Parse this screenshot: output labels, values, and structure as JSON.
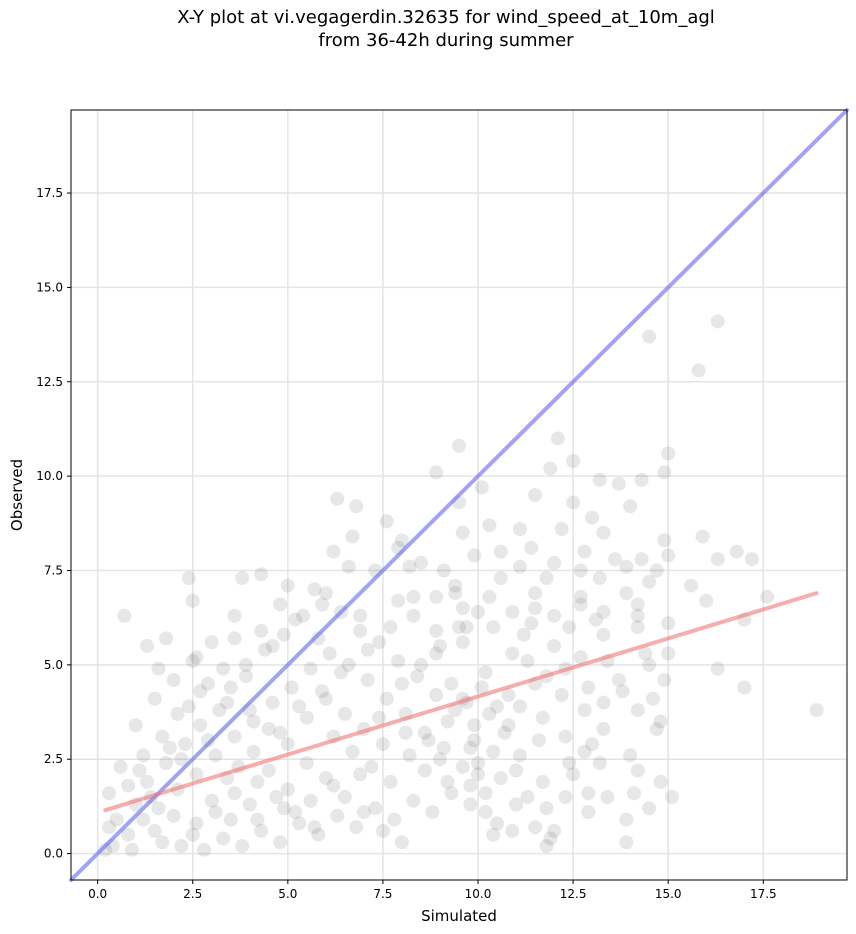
{
  "chart_data": {
    "type": "scatter",
    "title": [
      "X-Y plot at vi.vegagerdin.32635 for wind_speed_at_10m_agl",
      "from 36-42h during summer"
    ],
    "xlabel": "Simulated",
    "ylabel": "Observed",
    "xlim": [
      -0.7,
      19.7
    ],
    "ylim": [
      -0.7,
      19.7
    ],
    "xticks": [
      0.0,
      2.5,
      5.0,
      7.5,
      10.0,
      12.5,
      15.0,
      17.5
    ],
    "yticks": [
      0.0,
      2.5,
      5.0,
      7.5,
      10.0,
      12.5,
      15.0,
      17.5
    ],
    "tick_labels": [
      "0.0",
      "2.5",
      "5.0",
      "7.5",
      "10.0",
      "12.5",
      "15.0",
      "17.5"
    ],
    "grid": true,
    "colors": {
      "points": "#444444",
      "identity_line": "#6666ee",
      "fit_line": "#ee7777"
    },
    "lines": [
      {
        "kind": "identity",
        "points": [
          [
            -0.7,
            -0.7
          ],
          [
            19.7,
            19.7
          ]
        ]
      },
      {
        "kind": "linear_fit",
        "points": [
          [
            0.2,
            1.15
          ],
          [
            18.9,
            6.9
          ]
        ]
      }
    ],
    "points": [
      [
        16.3,
        14.1
      ],
      [
        14.5,
        13.7
      ],
      [
        15.8,
        12.8
      ],
      [
        12.1,
        11.0
      ],
      [
        9.5,
        10.8
      ],
      [
        12.5,
        10.4
      ],
      [
        15.0,
        10.6
      ],
      [
        11.9,
        10.2
      ],
      [
        8.9,
        10.1
      ],
      [
        14.9,
        10.1
      ],
      [
        13.2,
        9.9
      ],
      [
        14.3,
        9.9
      ],
      [
        10.1,
        9.7
      ],
      [
        13.7,
        9.8
      ],
      [
        11.5,
        9.5
      ],
      [
        6.3,
        9.4
      ],
      [
        12.5,
        9.3
      ],
      [
        14.0,
        9.2
      ],
      [
        9.5,
        9.3
      ],
      [
        6.8,
        9.2
      ],
      [
        13.0,
        8.9
      ],
      [
        7.6,
        8.8
      ],
      [
        10.3,
        8.7
      ],
      [
        11.1,
        8.6
      ],
      [
        13.3,
        8.5
      ],
      [
        9.6,
        8.5
      ],
      [
        12.2,
        8.6
      ],
      [
        14.9,
        8.3
      ],
      [
        15.9,
        8.4
      ],
      [
        8.0,
        8.3
      ],
      [
        6.7,
        8.4
      ],
      [
        11.4,
        8.1
      ],
      [
        12.8,
        8.0
      ],
      [
        16.8,
        8.0
      ],
      [
        10.6,
        8.0
      ],
      [
        6.2,
        8.0
      ],
      [
        7.9,
        8.1
      ],
      [
        15.0,
        7.9
      ],
      [
        9.9,
        7.9
      ],
      [
        14.3,
        7.8
      ],
      [
        13.6,
        7.8
      ],
      [
        16.3,
        7.8
      ],
      [
        17.2,
        7.8
      ],
      [
        8.5,
        7.7
      ],
      [
        12.0,
        7.7
      ],
      [
        6.6,
        7.6
      ],
      [
        13.9,
        7.6
      ],
      [
        11.1,
        7.6
      ],
      [
        9.1,
        7.5
      ],
      [
        7.3,
        7.5
      ],
      [
        8.2,
        7.6
      ],
      [
        14.7,
        7.5
      ],
      [
        12.7,
        7.5
      ],
      [
        2.4,
        7.3
      ],
      [
        3.8,
        7.3
      ],
      [
        10.6,
        7.3
      ],
      [
        13.2,
        7.3
      ],
      [
        4.3,
        7.4
      ],
      [
        11.8,
        7.3
      ],
      [
        5.0,
        7.1
      ],
      [
        15.6,
        7.1
      ],
      [
        14.5,
        7.2
      ],
      [
        2.5,
        6.7
      ],
      [
        4.8,
        6.6
      ],
      [
        11.5,
        6.9
      ],
      [
        9.4,
        6.9
      ],
      [
        5.7,
        7.0
      ],
      [
        13.9,
        6.9
      ],
      [
        12.7,
        6.8
      ],
      [
        10.3,
        6.8
      ],
      [
        16.0,
        6.7
      ],
      [
        8.3,
        6.8
      ],
      [
        7.9,
        6.7
      ],
      [
        17.6,
        6.8
      ],
      [
        14.2,
        6.6
      ],
      [
        11.5,
        6.5
      ],
      [
        12.7,
        6.6
      ],
      [
        9.6,
        6.5
      ],
      [
        13.3,
        6.4
      ],
      [
        10.9,
        6.4
      ],
      [
        3.6,
        6.3
      ],
      [
        6.9,
        6.3
      ],
      [
        0.7,
        6.3
      ],
      [
        12.0,
        6.3
      ],
      [
        14.2,
        6.3
      ],
      [
        17.0,
        6.2
      ],
      [
        15.0,
        6.1
      ],
      [
        11.4,
        6.1
      ],
      [
        13.1,
        6.2
      ],
      [
        9.7,
        6.0
      ],
      [
        12.4,
        6.0
      ],
      [
        10.4,
        6.0
      ],
      [
        14.2,
        6.0
      ],
      [
        4.3,
        5.9
      ],
      [
        8.9,
        5.9
      ],
      [
        13.3,
        5.8
      ],
      [
        11.2,
        5.8
      ],
      [
        1.8,
        5.7
      ],
      [
        3.6,
        5.7
      ],
      [
        5.8,
        5.7
      ],
      [
        9.6,
        5.6
      ],
      [
        12.0,
        5.5
      ],
      [
        1.3,
        5.5
      ],
      [
        14.4,
        5.3
      ],
      [
        10.9,
        5.3
      ],
      [
        12.7,
        5.2
      ],
      [
        15.0,
        5.3
      ],
      [
        8.9,
        5.3
      ],
      [
        11.3,
        5.1
      ],
      [
        13.4,
        5.1
      ],
      [
        2.6,
        5.2
      ],
      [
        16.3,
        4.9
      ],
      [
        14.5,
        5.0
      ],
      [
        12.3,
        4.9
      ],
      [
        10.2,
        4.8
      ],
      [
        11.8,
        4.7
      ],
      [
        1.6,
        4.9
      ],
      [
        13.7,
        4.6
      ],
      [
        14.9,
        4.6
      ],
      [
        9.3,
        4.5
      ],
      [
        12.9,
        4.4
      ],
      [
        17.0,
        4.4
      ],
      [
        11.5,
        4.5
      ],
      [
        13.8,
        4.3
      ],
      [
        10.8,
        4.2
      ],
      [
        12.2,
        4.2
      ],
      [
        14.6,
        4.1
      ],
      [
        13.3,
        4.0
      ],
      [
        9.6,
        4.1
      ],
      [
        11.1,
        3.9
      ],
      [
        12.8,
        3.8
      ],
      [
        14.2,
        3.8
      ],
      [
        18.9,
        3.8
      ],
      [
        10.3,
        3.7
      ],
      [
        11.7,
        3.6
      ],
      [
        13.3,
        3.3
      ],
      [
        14.8,
        3.5
      ],
      [
        9.9,
        3.4
      ],
      [
        14.7,
        3.3
      ],
      [
        12.3,
        3.1
      ],
      [
        10.7,
        3.2
      ],
      [
        11.6,
        3.0
      ],
      [
        13.0,
        2.9
      ],
      [
        9.8,
        2.8
      ],
      [
        12.8,
        2.7
      ],
      [
        11.1,
        2.6
      ],
      [
        14.0,
        2.6
      ],
      [
        10.0,
        2.4
      ],
      [
        12.4,
        2.4
      ],
      [
        13.2,
        2.4
      ],
      [
        11.0,
        2.2
      ],
      [
        14.2,
        2.2
      ],
      [
        12.5,
        2.1
      ],
      [
        10.6,
        2.0
      ],
      [
        11.7,
        1.9
      ],
      [
        14.8,
        1.9
      ],
      [
        9.8,
        1.8
      ],
      [
        12.9,
        1.6
      ],
      [
        14.1,
        1.6
      ],
      [
        10.2,
        1.6
      ],
      [
        11.3,
        1.5
      ],
      [
        12.3,
        1.5
      ],
      [
        13.4,
        1.5
      ],
      [
        15.1,
        1.5
      ],
      [
        11.0,
        1.3
      ],
      [
        11.8,
        1.2
      ],
      [
        14.5,
        1.2
      ],
      [
        10.2,
        1.1
      ],
      [
        12.9,
        1.1
      ],
      [
        13.9,
        0.9
      ],
      [
        10.5,
        0.8
      ],
      [
        11.5,
        0.7
      ],
      [
        12.0,
        0.6
      ],
      [
        10.9,
        0.6
      ],
      [
        11.9,
        0.4
      ],
      [
        10.4,
        0.5
      ],
      [
        13.9,
        0.3
      ],
      [
        11.8,
        0.2
      ],
      [
        0.3,
        1.6
      ],
      [
        0.6,
        2.3
      ],
      [
        1.1,
        2.2
      ],
      [
        1.4,
        1.5
      ],
      [
        1.9,
        2.8
      ],
      [
        2.4,
        3.9
      ],
      [
        2.9,
        4.5
      ],
      [
        3.4,
        4.0
      ],
      [
        3.9,
        4.7
      ],
      [
        4.4,
        5.4
      ],
      [
        4.9,
        5.8
      ],
      [
        5.4,
        6.3
      ],
      [
        5.9,
        6.6
      ],
      [
        6.4,
        6.4
      ],
      [
        6.9,
        5.9
      ],
      [
        7.4,
        5.6
      ],
      [
        7.9,
        5.1
      ],
      [
        8.4,
        4.7
      ],
      [
        8.9,
        4.2
      ],
      [
        9.4,
        3.8
      ],
      [
        1.0,
        3.4
      ],
      [
        1.5,
        4.1
      ],
      [
        2.0,
        4.6
      ],
      [
        2.5,
        5.1
      ],
      [
        3.0,
        5.6
      ],
      [
        3.5,
        4.4
      ],
      [
        4.0,
        3.8
      ],
      [
        4.5,
        3.3
      ],
      [
        5.0,
        2.9
      ],
      [
        5.5,
        2.4
      ],
      [
        6.0,
        2.0
      ],
      [
        6.5,
        1.5
      ],
      [
        7.0,
        1.1
      ],
      [
        7.5,
        0.6
      ],
      [
        8.0,
        0.3
      ],
      [
        0.4,
        0.2
      ],
      [
        0.8,
        0.5
      ],
      [
        1.2,
        0.9
      ],
      [
        1.6,
        1.2
      ],
      [
        2.1,
        1.7
      ],
      [
        2.6,
        2.1
      ],
      [
        3.1,
        2.6
      ],
      [
        3.6,
        3.1
      ],
      [
        4.1,
        3.5
      ],
      [
        4.6,
        4.0
      ],
      [
        5.1,
        4.4
      ],
      [
        5.6,
        4.9
      ],
      [
        6.1,
        5.3
      ],
      [
        6.6,
        5.0
      ],
      [
        7.1,
        4.6
      ],
      [
        7.6,
        4.1
      ],
      [
        8.1,
        3.7
      ],
      [
        8.6,
        3.2
      ],
      [
        9.1,
        2.8
      ],
      [
        9.6,
        2.3
      ],
      [
        0.9,
        0.1
      ],
      [
        1.7,
        0.3
      ],
      [
        2.2,
        0.2
      ],
      [
        2.8,
        0.1
      ],
      [
        3.3,
        0.4
      ],
      [
        3.8,
        0.2
      ],
      [
        4.3,
        0.6
      ],
      [
        4.8,
        0.3
      ],
      [
        5.3,
        0.8
      ],
      [
        5.8,
        0.5
      ],
      [
        6.3,
        1.0
      ],
      [
        6.8,
        0.7
      ],
      [
        7.3,
        1.2
      ],
      [
        7.8,
        0.9
      ],
      [
        8.3,
        1.4
      ],
      [
        8.8,
        1.1
      ],
      [
        9.3,
        1.6
      ],
      [
        9.8,
        1.3
      ],
      [
        10.0,
        2.1
      ],
      [
        9.0,
        2.5
      ],
      [
        1.3,
        1.9
      ],
      [
        1.8,
        2.4
      ],
      [
        2.3,
        2.9
      ],
      [
        2.7,
        3.4
      ],
      [
        3.2,
        3.8
      ],
      [
        3.7,
        2.3
      ],
      [
        4.2,
        1.9
      ],
      [
        4.7,
        1.5
      ],
      [
        5.2,
        1.1
      ],
      [
        5.7,
        0.7
      ],
      [
        6.2,
        3.1
      ],
      [
        6.7,
        2.7
      ],
      [
        7.2,
        2.3
      ],
      [
        7.7,
        1.9
      ],
      [
        8.2,
        2.6
      ],
      [
        8.7,
        3.0
      ],
      [
        9.2,
        3.5
      ],
      [
        9.7,
        4.0
      ],
      [
        10.1,
        4.4
      ],
      [
        10.5,
        3.9
      ],
      [
        0.5,
        0.9
      ],
      [
        1.0,
        1.3
      ],
      [
        1.5,
        0.6
      ],
      [
        2.0,
        1.0
      ],
      [
        2.5,
        0.5
      ],
      [
        3.0,
        1.4
      ],
      [
        3.5,
        0.9
      ],
      [
        4.0,
        1.3
      ],
      [
        4.5,
        2.2
      ],
      [
        5.0,
        1.7
      ],
      [
        5.5,
        3.6
      ],
      [
        6.0,
        4.1
      ],
      [
        6.5,
        3.7
      ],
      [
        7.0,
        3.3
      ],
      [
        7.5,
        2.9
      ],
      [
        8.0,
        4.5
      ],
      [
        8.5,
        5.0
      ],
      [
        9.0,
        5.5
      ],
      [
        9.5,
        6.0
      ],
      [
        10.0,
        6.4
      ],
      [
        2.2,
        2.5
      ],
      [
        2.9,
        3.0
      ],
      [
        3.4,
        2.0
      ],
      [
        4.1,
        2.7
      ],
      [
        4.8,
        3.2
      ],
      [
        5.3,
        3.9
      ],
      [
        5.9,
        4.3
      ],
      [
        6.4,
        4.8
      ],
      [
        7.1,
        5.4
      ],
      [
        7.7,
        6.0
      ],
      [
        8.3,
        6.3
      ],
      [
        8.9,
        6.8
      ],
      [
        9.4,
        7.1
      ],
      [
        6.0,
        6.9
      ],
      [
        5.2,
        6.2
      ],
      [
        4.6,
        5.5
      ],
      [
        3.9,
        5.0
      ],
      [
        3.3,
        4.9
      ],
      [
        2.7,
        4.3
      ],
      [
        2.1,
        3.7
      ],
      [
        1.7,
        3.1
      ],
      [
        1.2,
        2.6
      ],
      [
        0.8,
        1.8
      ],
      [
        0.3,
        0.7
      ],
      [
        0.2,
        0.1
      ],
      [
        2.6,
        0.8
      ],
      [
        3.1,
        1.1
      ],
      [
        3.6,
        1.6
      ],
      [
        4.2,
        0.9
      ],
      [
        4.9,
        1.2
      ],
      [
        5.6,
        1.4
      ],
      [
        6.2,
        1.8
      ],
      [
        6.9,
        2.1
      ],
      [
        7.4,
        3.6
      ],
      [
        8.1,
        3.2
      ],
      [
        8.6,
        2.2
      ],
      [
        9.2,
        1.9
      ],
      [
        9.9,
        3.0
      ],
      [
        10.4,
        2.7
      ],
      [
        10.8,
        3.4
      ]
    ]
  }
}
